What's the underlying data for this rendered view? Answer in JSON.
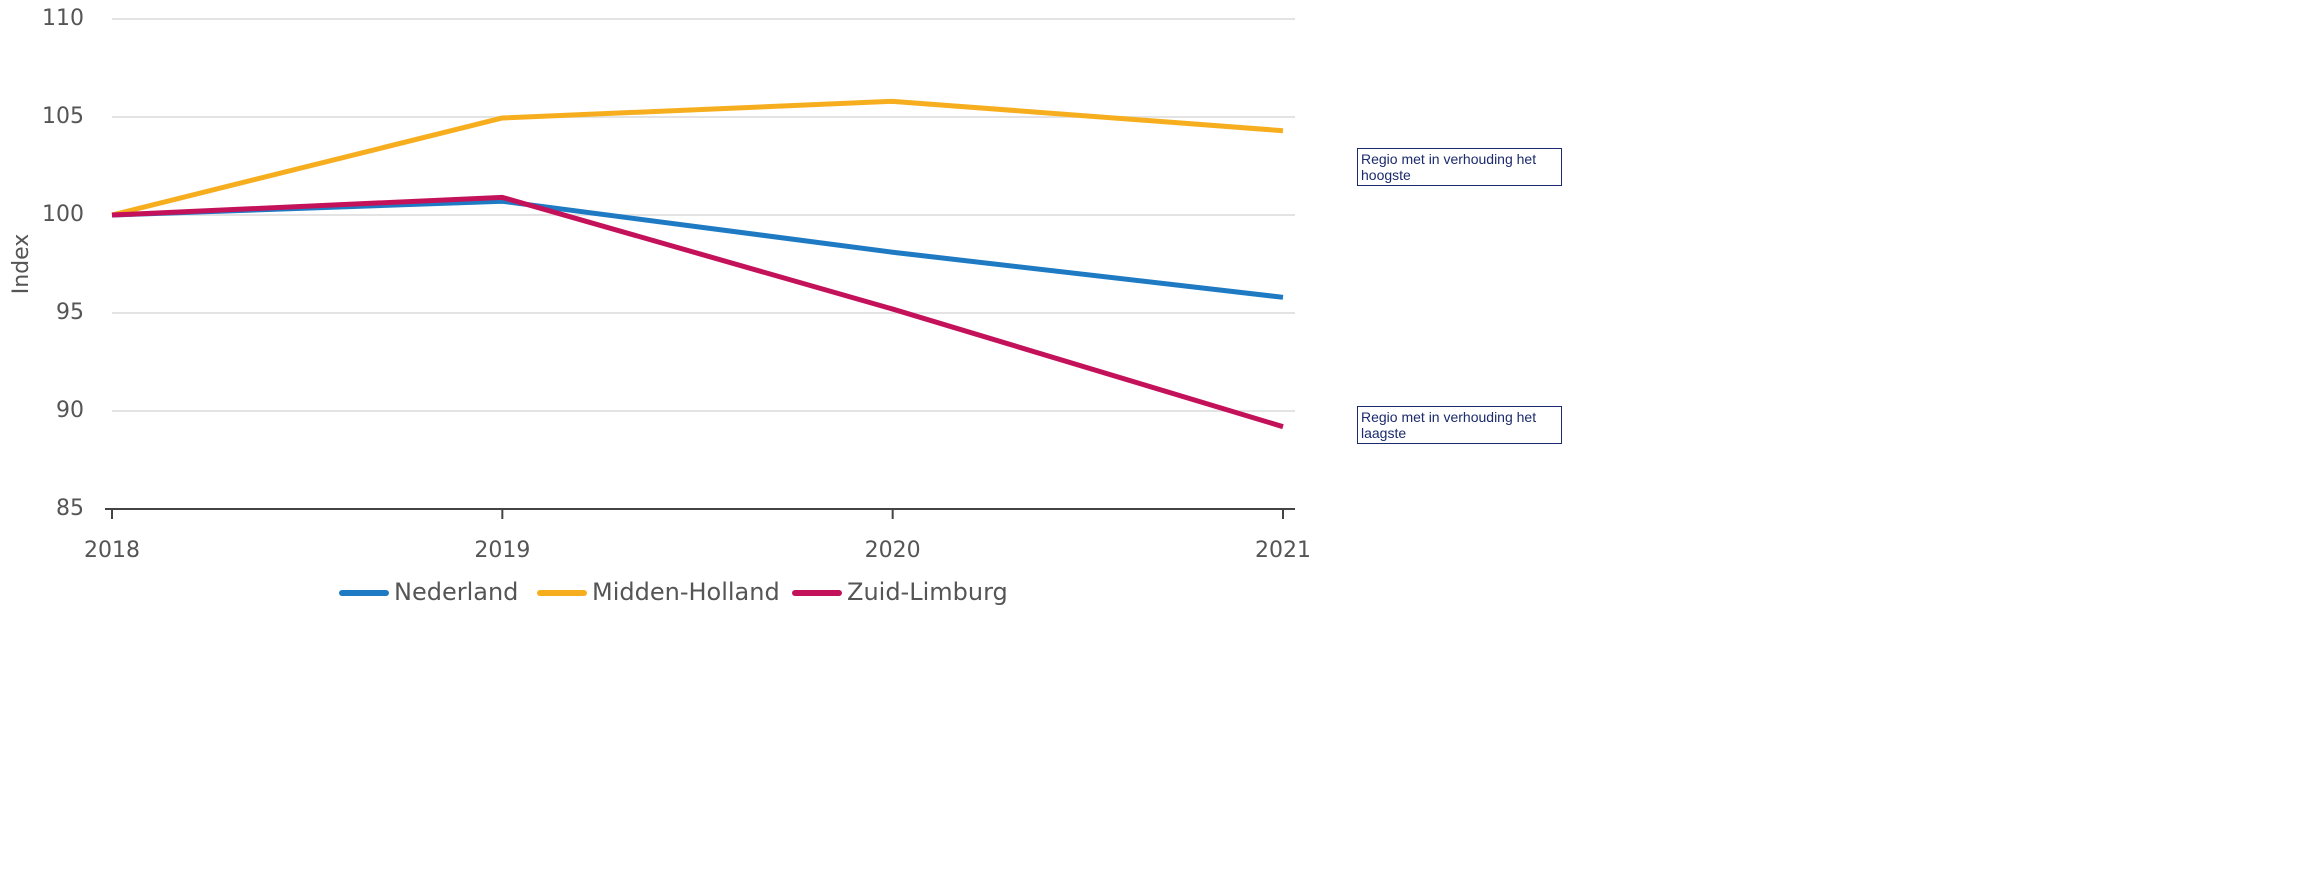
{
  "chart_data": {
    "type": "line",
    "y_label": "Index",
    "x": [
      2018,
      2019,
      2020,
      2021
    ],
    "xlim": [
      2018,
      2021
    ],
    "xticks": [
      2018,
      2019,
      2020,
      2021
    ],
    "ylim": [
      85,
      110
    ],
    "yticks": [
      85,
      90,
      95,
      100,
      105,
      110
    ],
    "grid": true,
    "series": [
      {
        "name": "Nederland",
        "color": "#1f7ac4",
        "values": [
          100,
          100.7,
          98.1,
          95.8
        ]
      },
      {
        "name": "Midden-Holland",
        "color": "#f6ae1f",
        "values": [
          100,
          104.95,
          105.8,
          104.3
        ]
      },
      {
        "name": "Zuid-Limburg",
        "color": "#c4125a",
        "values": [
          100,
          100.9,
          95.2,
          89.2
        ]
      }
    ],
    "annotations": [
      "Regio met in verhouding het hoogste",
      "Regio met in verhouding het laagste"
    ]
  }
}
